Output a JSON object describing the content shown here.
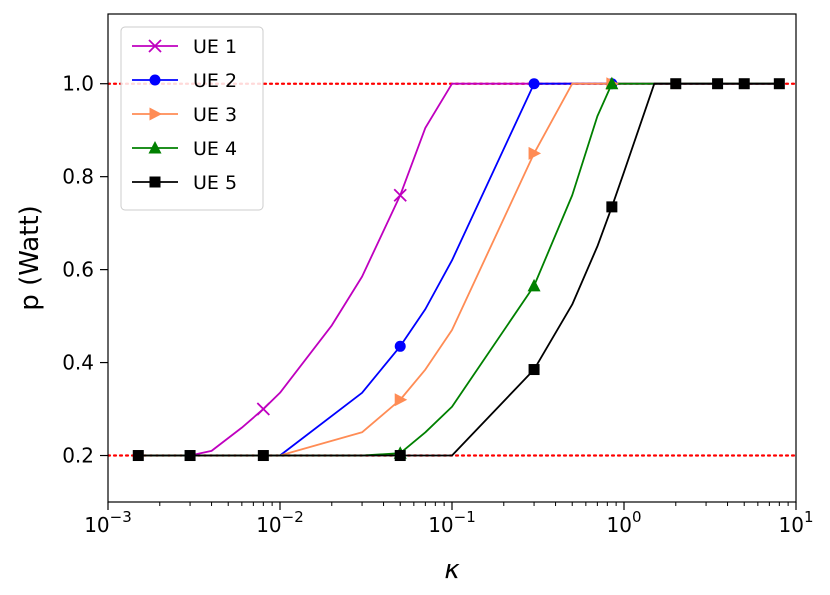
{
  "chart_data": {
    "type": "line",
    "xscale": "log",
    "xlabel": "κ",
    "ylabel": "p (Watt)",
    "xlim": [
      0.001,
      10
    ],
    "ylim": [
      0.1,
      1.15
    ],
    "x_ticks": [
      {
        "value": 0.001,
        "base": "10",
        "exp": "−3"
      },
      {
        "value": 0.01,
        "base": "10",
        "exp": "−2"
      },
      {
        "value": 0.1,
        "base": "10",
        "exp": "−1"
      },
      {
        "value": 1,
        "base": "10",
        "exp": "0"
      },
      {
        "value": 10,
        "base": "10",
        "exp": "1"
      }
    ],
    "y_ticks": [
      {
        "value": 0.2,
        "label": "0.2"
      },
      {
        "value": 0.4,
        "label": "0.4"
      },
      {
        "value": 0.6,
        "label": "0.6"
      },
      {
        "value": 0.8,
        "label": "0.8"
      },
      {
        "value": 1.0,
        "label": "1.0"
      }
    ],
    "reference_lines": [
      {
        "y": 1.0,
        "color": "#ff0000",
        "style": "dotted"
      },
      {
        "y": 0.2,
        "color": "#ff0000",
        "style": "dotted"
      }
    ],
    "grid": false,
    "legend_position": "top-left",
    "series": [
      {
        "name": "UE 1",
        "color": "#bf00bf",
        "marker": "x",
        "line_x": [
          0.0015,
          0.003,
          0.004,
          0.006,
          0.008,
          0.01,
          0.02,
          0.03,
          0.05,
          0.07,
          0.1,
          0.3,
          0.5,
          0.85,
          1,
          1.5,
          2,
          3.5,
          5,
          8
        ],
        "line_y": [
          0.2,
          0.2,
          0.21,
          0.26,
          0.3,
          0.335,
          0.48,
          0.585,
          0.76,
          0.905,
          1.0,
          1.0,
          1.0,
          1.0,
          1.0,
          1.0,
          1.0,
          1.0,
          1.0,
          1.0
        ],
        "marker_x": [
          0.008,
          0.05
        ],
        "marker_y": [
          0.3,
          0.76
        ]
      },
      {
        "name": "UE 2",
        "color": "#0000ff",
        "marker": "circle",
        "line_x": [
          0.0015,
          0.003,
          0.008,
          0.01,
          0.03,
          0.05,
          0.07,
          0.1,
          0.3,
          0.5,
          0.85,
          1,
          1.5,
          2,
          3.5,
          5,
          8
        ],
        "line_y": [
          0.2,
          0.2,
          0.2,
          0.2,
          0.335,
          0.435,
          0.515,
          0.62,
          1.0,
          1.0,
          1.0,
          1.0,
          1.0,
          1.0,
          1.0,
          1.0,
          1.0
        ],
        "marker_x": [
          0.05,
          0.3,
          0.85
        ],
        "marker_y": [
          0.435,
          1.0,
          1.0
        ]
      },
      {
        "name": "UE 3",
        "color": "#ff8c55",
        "marker": "triangle-right",
        "line_x": [
          0.0015,
          0.003,
          0.008,
          0.01,
          0.03,
          0.05,
          0.07,
          0.1,
          0.3,
          0.5,
          0.85,
          1,
          1.5,
          2,
          3.5,
          5,
          8
        ],
        "line_y": [
          0.2,
          0.2,
          0.2,
          0.2,
          0.25,
          0.32,
          0.385,
          0.47,
          0.85,
          1.0,
          1.0,
          1.0,
          1.0,
          1.0,
          1.0,
          1.0,
          1.0
        ],
        "marker_x": [
          0.05,
          0.3,
          0.85
        ],
        "marker_y": [
          0.32,
          0.85,
          1.0
        ]
      },
      {
        "name": "UE 4",
        "color": "#008000",
        "marker": "triangle-up",
        "line_x": [
          0.0015,
          0.003,
          0.008,
          0.01,
          0.03,
          0.05,
          0.07,
          0.1,
          0.3,
          0.5,
          0.7,
          0.85,
          1,
          1.5,
          2,
          3.5,
          5,
          8
        ],
        "line_y": [
          0.2,
          0.2,
          0.2,
          0.2,
          0.2,
          0.205,
          0.25,
          0.305,
          0.565,
          0.76,
          0.93,
          1.0,
          1.0,
          1.0,
          1.0,
          1.0,
          1.0,
          1.0
        ],
        "marker_x": [
          0.05,
          0.3,
          0.85
        ],
        "marker_y": [
          0.205,
          0.565,
          1.0
        ]
      },
      {
        "name": "UE 5",
        "color": "#000000",
        "marker": "square",
        "line_x": [
          0.0015,
          0.003,
          0.008,
          0.01,
          0.05,
          0.1,
          0.3,
          0.5,
          0.7,
          0.85,
          1,
          1.5,
          2,
          3.5,
          5,
          8
        ],
        "line_y": [
          0.2,
          0.2,
          0.2,
          0.2,
          0.2,
          0.2,
          0.385,
          0.525,
          0.65,
          0.735,
          0.81,
          1.0,
          1.0,
          1.0,
          1.0,
          1.0
        ],
        "marker_x": [
          0.0015,
          0.003,
          0.008,
          0.05,
          0.3,
          0.85,
          2,
          3.5,
          5,
          8
        ],
        "marker_y": [
          0.2,
          0.2,
          0.2,
          0.2,
          0.385,
          0.735,
          1.0,
          1.0,
          1.0,
          1.0
        ]
      }
    ]
  }
}
